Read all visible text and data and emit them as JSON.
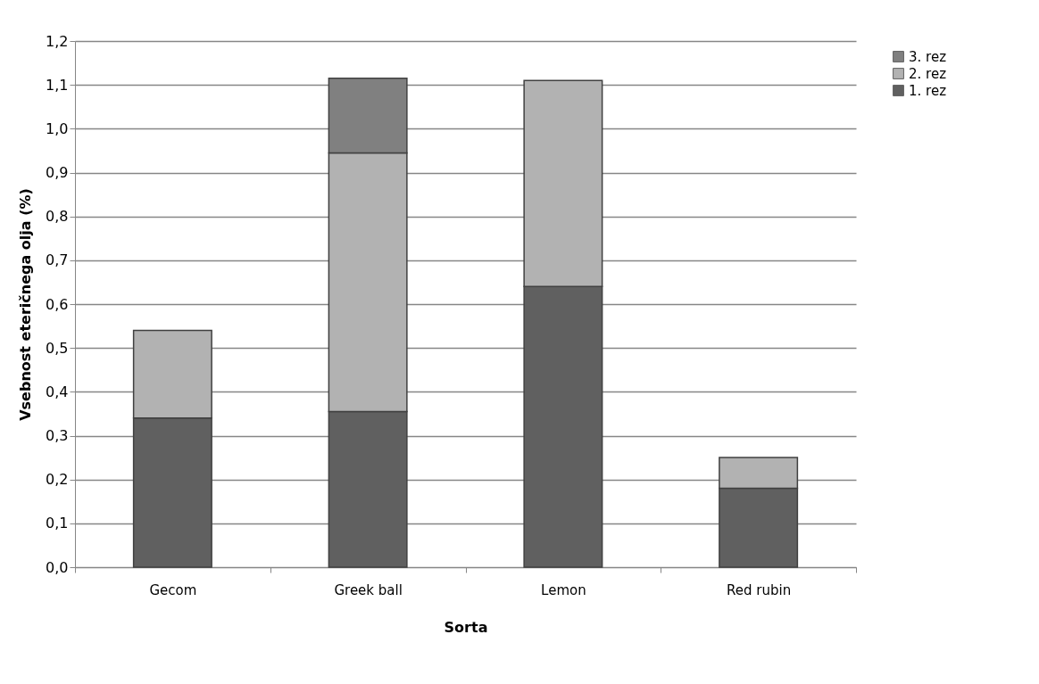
{
  "chart_data": {
    "type": "bar",
    "stacked": true,
    "xlabel": "Sorta",
    "ylabel": "Vsebnost eteričnega olja (%)",
    "categories": [
      "Gecom",
      "Greek ball",
      "Lemon",
      "Red rubin"
    ],
    "series": [
      {
        "name": "1. rez",
        "color": "#606060",
        "values": [
          0.34,
          0.355,
          0.64,
          0.18
        ]
      },
      {
        "name": "2. rez",
        "color": "#b2b2b2",
        "values": [
          0.2,
          0.59,
          0.47,
          0.07
        ]
      },
      {
        "name": "3. rez",
        "color": "#808080",
        "values": [
          null,
          0.17,
          null,
          null
        ]
      }
    ],
    "ylim": [
      0,
      1.2
    ],
    "yticks": [
      {
        "value": 0,
        "label": "0,0"
      },
      {
        "value": 0.1,
        "label": "0,1"
      },
      {
        "value": 0.2,
        "label": "0,2"
      },
      {
        "value": 0.3,
        "label": "0,3"
      },
      {
        "value": 0.4,
        "label": "0,4"
      },
      {
        "value": 0.5,
        "label": "0,5"
      },
      {
        "value": 0.6,
        "label": "0,6"
      },
      {
        "value": 0.7,
        "label": "0,7"
      },
      {
        "value": 0.8,
        "label": "0,8"
      },
      {
        "value": 0.9,
        "label": "0,9"
      },
      {
        "value": 1.0,
        "label": "1,0"
      },
      {
        "value": 1.1,
        "label": "1,1"
      },
      {
        "value": 1.2,
        "label": "1,2"
      }
    ],
    "grid": "y",
    "legend": "right"
  }
}
